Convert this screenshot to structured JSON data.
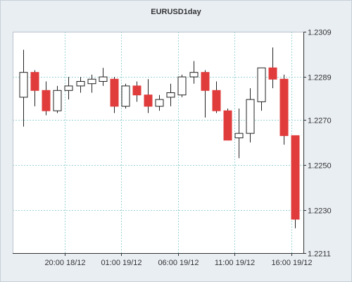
{
  "chart_data": {
    "type": "candlestick",
    "title": "EURUSD1day",
    "xlabel": "",
    "ylabel": "",
    "ylim": [
      1.2211,
      1.2309
    ],
    "y_ticks": [
      "1.2211",
      "1.2230",
      "1.2250",
      "1.2270",
      "1.2289",
      "1.2309"
    ],
    "x_ticks": [
      {
        "label": "20:00 18/12",
        "index": 4
      },
      {
        "label": "01:00 19/12",
        "index": 9
      },
      {
        "label": "06:00 19/12",
        "index": 14
      },
      {
        "label": "11:00 19/12",
        "index": 19
      },
      {
        "label": "16:00 19/12",
        "index": 24
      }
    ],
    "grid": true,
    "colors": {
      "up": "#ffffff",
      "down": "#e03c3c",
      "grid": "#9bd3d3",
      "axis": "#333333"
    },
    "candles": [
      {
        "o": 1.228,
        "h": 1.2301,
        "l": 1.2267,
        "c": 1.2291
      },
      {
        "o": 1.2291,
        "h": 1.2292,
        "l": 1.2276,
        "c": 1.2283
      },
      {
        "o": 1.2283,
        "h": 1.2287,
        "l": 1.2272,
        "c": 1.2274
      },
      {
        "o": 1.2274,
        "h": 1.2285,
        "l": 1.2273,
        "c": 1.2283
      },
      {
        "o": 1.2283,
        "h": 1.2289,
        "l": 1.2279,
        "c": 1.2285
      },
      {
        "o": 1.2285,
        "h": 1.2289,
        "l": 1.2282,
        "c": 1.2287
      },
      {
        "o": 1.2286,
        "h": 1.229,
        "l": 1.2282,
        "c": 1.2288
      },
      {
        "o": 1.2287,
        "h": 1.2293,
        "l": 1.2285,
        "c": 1.2289
      },
      {
        "o": 1.2288,
        "h": 1.2289,
        "l": 1.2273,
        "c": 1.2276
      },
      {
        "o": 1.2276,
        "h": 1.2286,
        "l": 1.2275,
        "c": 1.2285
      },
      {
        "o": 1.2285,
        "h": 1.2287,
        "l": 1.2278,
        "c": 1.2281
      },
      {
        "o": 1.2281,
        "h": 1.2288,
        "l": 1.2273,
        "c": 1.2276
      },
      {
        "o": 1.2276,
        "h": 1.2281,
        "l": 1.2274,
        "c": 1.2279
      },
      {
        "o": 1.228,
        "h": 1.2286,
        "l": 1.2276,
        "c": 1.2282
      },
      {
        "o": 1.2281,
        "h": 1.229,
        "l": 1.228,
        "c": 1.2289
      },
      {
        "o": 1.2289,
        "h": 1.2296,
        "l": 1.2286,
        "c": 1.2291
      },
      {
        "o": 1.2291,
        "h": 1.2292,
        "l": 1.2271,
        "c": 1.2283
      },
      {
        "o": 1.2283,
        "h": 1.2287,
        "l": 1.2273,
        "c": 1.2274
      },
      {
        "o": 1.2274,
        "h": 1.2275,
        "l": 1.2261,
        "c": 1.2261
      },
      {
        "o": 1.2262,
        "h": 1.2275,
        "l": 1.2253,
        "c": 1.2264
      },
      {
        "o": 1.2264,
        "h": 1.2284,
        "l": 1.226,
        "c": 1.2279
      },
      {
        "o": 1.2278,
        "h": 1.2293,
        "l": 1.2274,
        "c": 1.2293
      },
      {
        "o": 1.2293,
        "h": 1.2302,
        "l": 1.2284,
        "c": 1.2288
      },
      {
        "o": 1.2288,
        "h": 1.229,
        "l": 1.2259,
        "c": 1.2263
      },
      {
        "o": 1.2263,
        "h": 1.2263,
        "l": 1.2222,
        "c": 1.2226
      }
    ]
  }
}
